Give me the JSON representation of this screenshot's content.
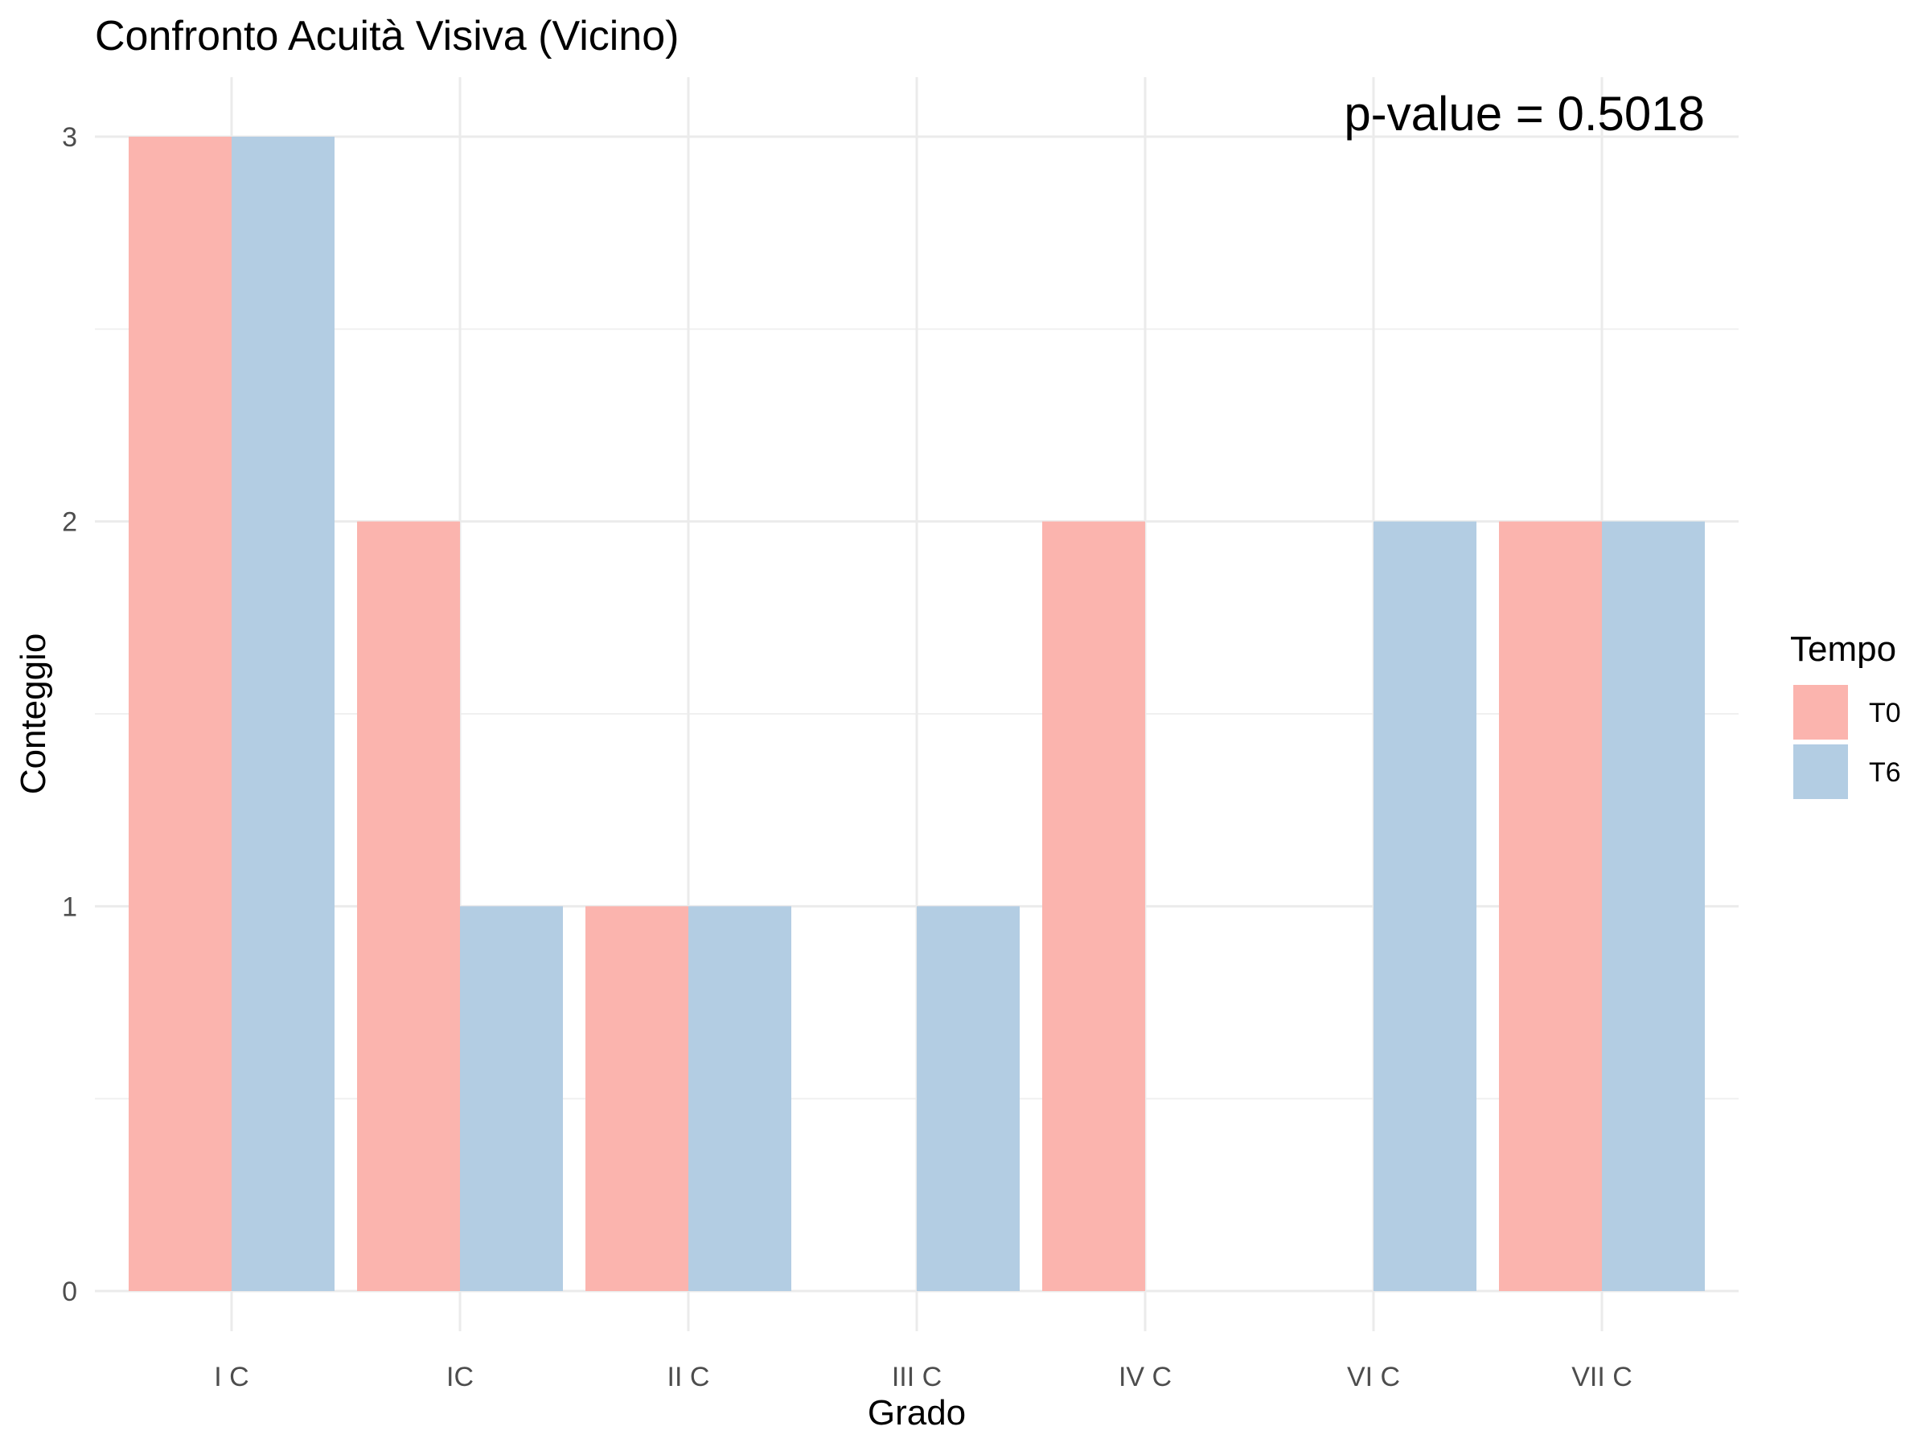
{
  "chart_data": {
    "type": "bar",
    "title": "Confronto Acuità Visiva (Vicino)",
    "xlabel": "Grado",
    "ylabel": "Conteggio",
    "categories": [
      "I C",
      "IC",
      "II C",
      "III C",
      "IV C",
      "VI C",
      "VII C"
    ],
    "series": [
      {
        "name": "T0",
        "color": "#FBB4AE",
        "values": [
          3,
          2,
          1,
          0,
          2,
          0,
          2
        ]
      },
      {
        "name": "T6",
        "color": "#B3CDE3",
        "values": [
          3,
          1,
          1,
          1,
          0,
          2,
          2
        ]
      }
    ],
    "ylim": [
      0,
      3
    ],
    "yticks": [
      0,
      1,
      2,
      3
    ],
    "grid": true,
    "legend": {
      "title": "Tempo",
      "position": "right"
    },
    "annotation": "p-value = 0.5018"
  }
}
